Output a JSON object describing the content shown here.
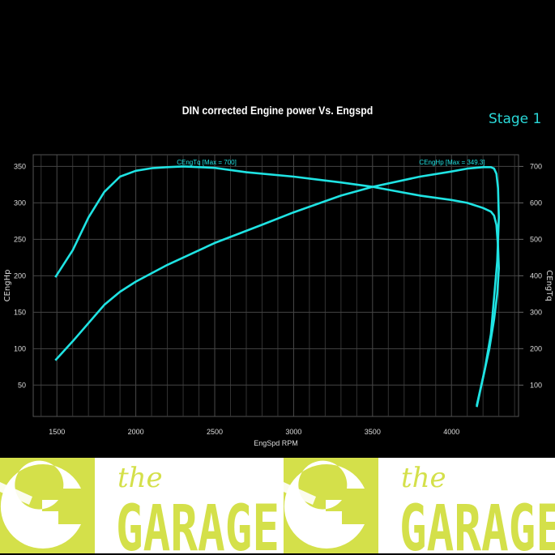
{
  "stage_label": "Stage 1",
  "logo": {
    "text_small": "the",
    "text_big": "GARAGE",
    "color": "#d4e04a"
  },
  "chart_data": {
    "type": "line",
    "title": "DIN corrected Engine power Vs. Engspd",
    "xlabel": "EngSpd RPM",
    "ylabel_left": "CEngHp",
    "ylabel_right": "CEngTq",
    "xlim": [
      1350,
      4425
    ],
    "ylim_left": [
      7,
      366
    ],
    "ylim_right": [
      14,
      732
    ],
    "xticks": [
      1500,
      2000,
      2500,
      3000,
      3500,
      4000
    ],
    "yticks_left": [
      50,
      100,
      150,
      200,
      250,
      300,
      350
    ],
    "yticks_right": [
      100,
      200,
      300,
      400,
      500,
      600,
      700
    ],
    "grid": true,
    "line_color": "#1fe3e3",
    "series": [
      {
        "name": "CEngHp",
        "axis": "left",
        "annotation": "CEngHp [Max = 349.3]",
        "x": [
          1490,
          1600,
          1700,
          1800,
          1900,
          2000,
          2200,
          2500,
          2800,
          3000,
          3300,
          3500,
          3800,
          4000,
          4100,
          4200,
          4250,
          4270,
          4285,
          4295,
          4300,
          4290,
          4270,
          4250,
          4210,
          4160
        ],
        "y": [
          84,
          110,
          135,
          160,
          178,
          192,
          215,
          245,
          270,
          287,
          310,
          322,
          336,
          343,
          347,
          349,
          349,
          347,
          340,
          320,
          280,
          220,
          170,
          120,
          70,
          22
        ]
      },
      {
        "name": "CEngTq",
        "axis": "right",
        "annotation": "CEngTq [Max = 700]",
        "x": [
          1490,
          1600,
          1700,
          1800,
          1900,
          2000,
          2100,
          2200,
          2300,
          2500,
          2700,
          3000,
          3300,
          3500,
          3800,
          4000,
          4100,
          4200,
          4250,
          4270,
          4285,
          4295,
          4300,
          4290,
          4270,
          4240,
          4200,
          4160
        ],
        "y": [
          396,
          470,
          560,
          630,
          672,
          688,
          695,
          698,
          700,
          696,
          684,
          672,
          656,
          644,
          620,
          608,
          600,
          586,
          576,
          565,
          540,
          480,
          420,
          350,
          280,
          200,
          120,
          40
        ]
      }
    ]
  }
}
